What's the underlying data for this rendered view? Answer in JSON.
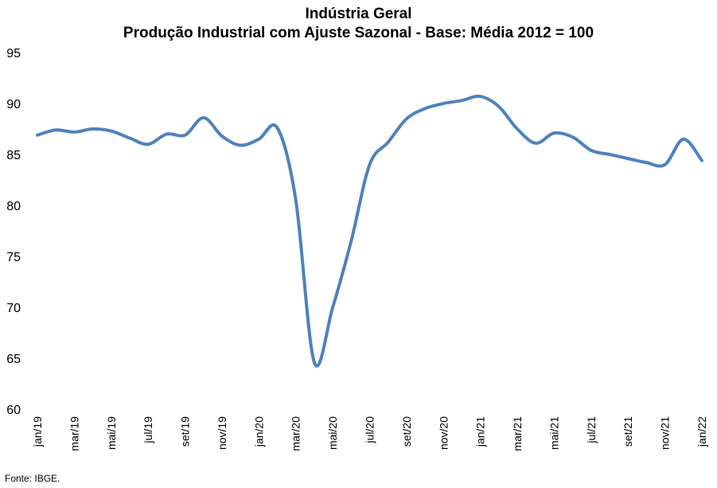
{
  "chart_data": {
    "type": "line",
    "title": "Indústria Geral",
    "subtitle": "Produção Industrial com Ajuste Sazonal - Base: Média 2012 = 100",
    "xlabel": "",
    "ylabel": "",
    "ylim": [
      60,
      95
    ],
    "yticks": [
      60,
      65,
      70,
      75,
      80,
      85,
      90,
      95
    ],
    "grid": false,
    "legend": "none",
    "x": [
      "jan/19",
      "fev/19",
      "mar/19",
      "abr/19",
      "mai/19",
      "jun/19",
      "jul/19",
      "ago/19",
      "set/19",
      "out/19",
      "nov/19",
      "dez/19",
      "jan/20",
      "fev/20",
      "mar/20",
      "abr/20",
      "mai/20",
      "jun/20",
      "jul/20",
      "ago/20",
      "set/20",
      "out/20",
      "nov/20",
      "dez/20",
      "jan/21",
      "fev/21",
      "mar/21",
      "abr/21",
      "mai/21",
      "jun/21",
      "jul/21",
      "ago/21",
      "set/21",
      "out/21",
      "nov/21",
      "dez/21",
      "jan/22"
    ],
    "xtick_labels": [
      "jan/19",
      "mar/19",
      "mai/19",
      "jul/19",
      "set/19",
      "nov/19",
      "jan/20",
      "mar/20",
      "mai/20",
      "jul/20",
      "set/20",
      "nov/20",
      "jan/21",
      "mar/21",
      "mai/21",
      "jul/21",
      "set/21",
      "nov/21",
      "jan/22"
    ],
    "series": [
      {
        "name": "",
        "color": "#4f81bd",
        "values": [
          86.9,
          87.4,
          87.2,
          87.5,
          87.3,
          86.6,
          86.0,
          87.0,
          86.9,
          88.6,
          86.8,
          85.9,
          86.5,
          87.6,
          80.5,
          64.6,
          70.0,
          76.5,
          84.0,
          86.2,
          88.5,
          89.5,
          90.0,
          90.3,
          90.7,
          89.7,
          87.5,
          86.1,
          87.1,
          86.7,
          85.4,
          85.0,
          84.6,
          84.2,
          84.0,
          86.5,
          84.4
        ]
      }
    ]
  },
  "source_note": "Fonte: IBGE."
}
